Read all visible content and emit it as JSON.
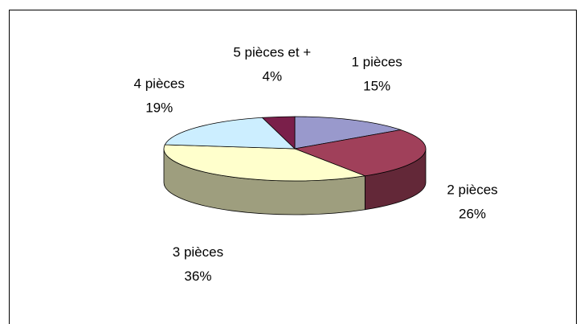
{
  "chart_data": {
    "type": "pie",
    "categories": [
      "1 pièces",
      "2 pièces",
      "3 pièces",
      "4 pièces",
      "5 pièces et  +"
    ],
    "values": [
      15,
      26,
      36,
      19,
      4
    ],
    "value_labels": [
      "15%",
      "26%",
      "36%",
      "19%",
      "4%"
    ],
    "colors": [
      "#9999cc",
      "#a0405a",
      "#ffffcc",
      "#cceeff",
      "#7a1f4a"
    ]
  }
}
